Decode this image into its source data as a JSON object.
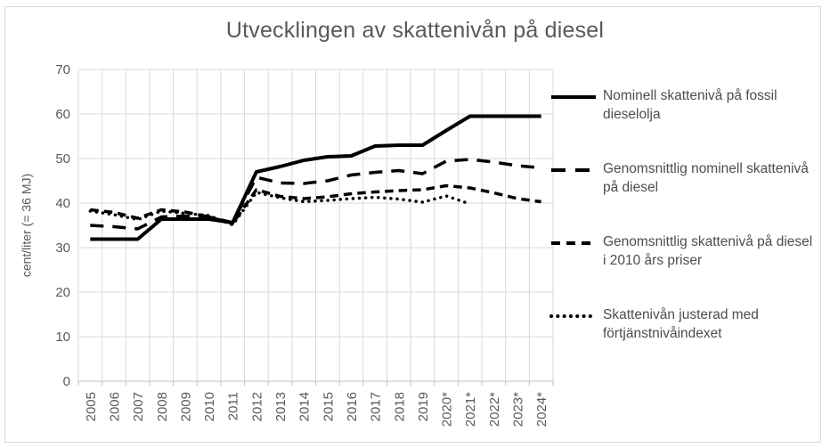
{
  "chart_data": {
    "type": "line",
    "title": "Utvecklingen av skattenivån på diesel",
    "xlabel": "",
    "ylabel": "cent/liter  (= 36 MJ)",
    "ylim": [
      0,
      70
    ],
    "y_tick_interval": 10,
    "y_ticks": [
      "0",
      "10",
      "20",
      "30",
      "40",
      "50",
      "60",
      "70"
    ],
    "grid": true,
    "legend_position": "right",
    "line_color": "#000000",
    "grid_color": "#d9d9d9",
    "axis_color": "#bfbfbf",
    "categories": [
      "2005",
      "2006",
      "2007",
      "2008",
      "2009",
      "2010",
      "2011",
      "2012",
      "2013",
      "2014",
      "2015",
      "2016",
      "2017",
      "2018",
      "2019",
      "2020*",
      "2021*",
      "2022*",
      "2023*",
      "2024*"
    ],
    "series": [
      {
        "name": "Nominell skattenivå på fossil dieselolja",
        "line_style": "solid",
        "values": [
          31.9,
          31.9,
          31.9,
          36.4,
          36.4,
          36.4,
          35.6,
          47.0,
          48.2,
          49.6,
          50.4,
          50.6,
          52.8,
          53.0,
          53.0,
          56.3,
          59.5,
          59.5,
          59.5,
          59.5
        ]
      },
      {
        "name": "Genomsnittlig nominell skattenivå på diesel",
        "line_style": "long-dash",
        "values": [
          35.0,
          34.7,
          34.2,
          36.9,
          37.1,
          36.9,
          35.6,
          45.8,
          44.5,
          44.4,
          45.0,
          46.3,
          46.9,
          47.3,
          46.6,
          49.4,
          49.8,
          49.2,
          48.4,
          47.9
        ]
      },
      {
        "name": "Genomsnittlig skattenivå på diesel i 2010 års priser",
        "line_style": "medium-dash",
        "values": [
          38.5,
          37.9,
          36.6,
          38.5,
          38.0,
          36.9,
          35.4,
          43.0,
          41.5,
          41.0,
          41.4,
          42.1,
          42.5,
          42.8,
          43.0,
          43.9,
          43.4,
          42.3,
          41.0,
          40.3
        ]
      },
      {
        "name": "Skattenivån justerad med förtjänstnivåindexet",
        "line_style": "dotted",
        "values": [
          38.2,
          37.4,
          36.3,
          38.2,
          37.7,
          37.2,
          35.1,
          42.4,
          41.2,
          40.3,
          40.6,
          41.0,
          41.3,
          40.9,
          40.2,
          41.6,
          39.8,
          null,
          null,
          null
        ]
      }
    ]
  }
}
